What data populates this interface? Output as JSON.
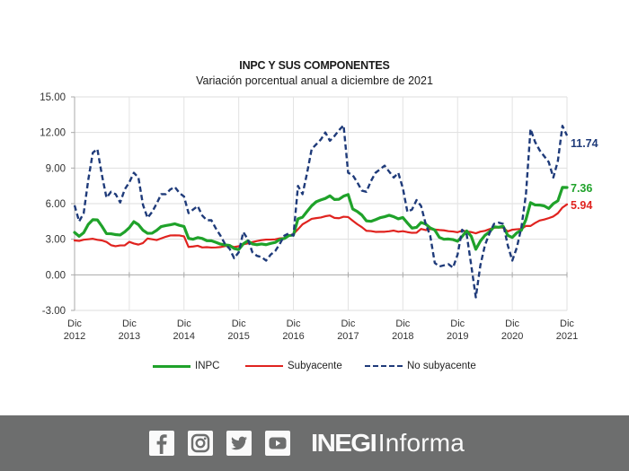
{
  "chart_data": {
    "type": "line",
    "title": "INPC Y SUS COMPONENTES",
    "subtitle": "Variación porcentual anual a diciembre de 2021",
    "xlabel": "",
    "ylabel": "",
    "ylim": [
      -3,
      15
    ],
    "yticks": [
      "15.00",
      "12.00",
      "9.00",
      "6.00",
      "3.00",
      "0.00",
      "-3.00"
    ],
    "ytick_values": [
      15,
      12,
      9,
      6,
      3,
      0,
      -3
    ],
    "xticks": [
      {
        "month": "Dic",
        "year": "2012"
      },
      {
        "month": "Dic",
        "year": "2013"
      },
      {
        "month": "Dic",
        "year": "2014"
      },
      {
        "month": "Dic",
        "year": "2015"
      },
      {
        "month": "Dic",
        "year": "2016"
      },
      {
        "month": "Dic",
        "year": "2017"
      },
      {
        "month": "Dic",
        "year": "2018"
      },
      {
        "month": "Dic",
        "year": "2019"
      },
      {
        "month": "Dic",
        "year": "2020"
      },
      {
        "month": "Dic",
        "year": "2021"
      }
    ],
    "x_start": "Dic 2012",
    "x_end": "Dic 2021",
    "frequency": "monthly",
    "grid": true,
    "legend_position": "bottom",
    "series": [
      {
        "name": "INPC",
        "color": "#1fa22a",
        "style": "solid",
        "end_label": "7.36",
        "values": [
          3.57,
          3.25,
          3.55,
          4.25,
          4.65,
          4.63,
          4.09,
          3.47,
          3.46,
          3.39,
          3.36,
          3.62,
          3.97,
          4.48,
          4.23,
          3.76,
          3.5,
          3.51,
          3.75,
          4.07,
          4.15,
          4.22,
          4.3,
          4.17,
          4.08,
          3.07,
          3.0,
          3.14,
          3.06,
          2.88,
          2.87,
          2.74,
          2.59,
          2.52,
          2.48,
          2.21,
          2.13,
          2.61,
          2.87,
          2.6,
          2.54,
          2.6,
          2.54,
          2.65,
          2.73,
          2.97,
          3.06,
          3.31,
          3.36,
          4.72,
          4.86,
          5.35,
          5.82,
          6.16,
          6.31,
          6.44,
          6.66,
          6.35,
          6.37,
          6.63,
          6.77,
          5.55,
          5.34,
          5.04,
          4.55,
          4.51,
          4.65,
          4.81,
          4.9,
          5.02,
          4.9,
          4.72,
          4.83,
          4.37,
          3.94,
          4.0,
          4.41,
          4.28,
          3.95,
          3.78,
          3.16,
          3.0,
          3.02,
          2.97,
          2.83,
          3.24,
          3.7,
          3.25,
          2.15,
          2.84,
          3.33,
          3.62,
          4.05,
          4.01,
          4.09,
          3.33,
          3.15,
          3.54,
          3.76,
          4.67,
          6.08,
          5.89,
          5.88,
          5.81,
          5.59,
          6.0,
          6.24,
          7.37,
          7.36
        ]
      },
      {
        "name": "Subyacente",
        "color": "#e0231f",
        "style": "solid",
        "end_label": "5.94",
        "values": [
          2.9,
          2.86,
          2.96,
          3.0,
          3.04,
          2.95,
          2.9,
          2.77,
          2.5,
          2.41,
          2.48,
          2.48,
          2.78,
          2.64,
          2.55,
          2.68,
          3.06,
          3.0,
          2.93,
          3.07,
          3.21,
          3.32,
          3.33,
          3.32,
          3.24,
          2.35,
          2.39,
          2.45,
          2.31,
          2.33,
          2.3,
          2.31,
          2.34,
          2.42,
          2.47,
          2.34,
          2.41,
          2.57,
          2.65,
          2.76,
          2.85,
          2.92,
          2.97,
          2.97,
          2.99,
          3.07,
          3.1,
          3.29,
          3.44,
          3.84,
          4.26,
          4.48,
          4.72,
          4.78,
          4.83,
          4.94,
          5.0,
          4.8,
          4.77,
          4.9,
          4.87,
          4.56,
          4.27,
          4.02,
          3.71,
          3.69,
          3.62,
          3.63,
          3.63,
          3.67,
          3.73,
          3.63,
          3.68,
          3.6,
          3.54,
          3.55,
          3.87,
          3.77,
          3.85,
          3.82,
          3.78,
          3.75,
          3.68,
          3.65,
          3.59,
          3.73,
          3.66,
          3.6,
          3.5,
          3.64,
          3.71,
          3.85,
          3.97,
          3.99,
          3.98,
          3.66,
          3.8,
          3.84,
          3.87,
          4.12,
          4.12,
          4.37,
          4.58,
          4.66,
          4.78,
          4.92,
          5.19,
          5.67,
          5.94
        ]
      },
      {
        "name": "No subyacente",
        "color": "#1f3b7a",
        "style": "dashed",
        "end_label": "11.74",
        "values": [
          5.85,
          4.5,
          5.2,
          8.0,
          10.3,
          10.6,
          8.4,
          6.5,
          7.0,
          6.8,
          6.1,
          7.2,
          7.8,
          8.6,
          8.2,
          5.9,
          4.8,
          5.3,
          6.0,
          6.8,
          6.8,
          7.2,
          7.4,
          6.9,
          6.6,
          5.2,
          5.5,
          5.8,
          5.0,
          4.6,
          4.6,
          3.9,
          3.3,
          2.6,
          2.2,
          1.4,
          1.9,
          3.6,
          3.0,
          1.9,
          1.6,
          1.5,
          1.2,
          1.7,
          2.0,
          2.6,
          3.3,
          3.5,
          3.3,
          7.5,
          6.8,
          8.6,
          10.6,
          11.0,
          11.4,
          12.0,
          11.3,
          11.7,
          12.2,
          12.6,
          8.6,
          8.4,
          7.8,
          7.1,
          7.0,
          7.9,
          8.6,
          8.9,
          9.2,
          8.7,
          8.2,
          8.6,
          7.3,
          5.3,
          5.5,
          6.3,
          5.8,
          4.3,
          3.3,
          1.0,
          0.7,
          0.8,
          0.9,
          0.6,
          1.7,
          3.8,
          3.4,
          0.8,
          -1.9,
          0.8,
          2.5,
          3.5,
          4.3,
          4.4,
          4.3,
          2.5,
          1.2,
          2.3,
          4.0,
          6.8,
          12.3,
          11.2,
          10.5,
          10.0,
          9.5,
          8.2,
          9.6,
          12.56,
          11.74
        ]
      }
    ]
  },
  "legend": {
    "items": [
      {
        "label": "INPC",
        "color": "#1fa22a",
        "style": "solid"
      },
      {
        "label": "Subyacente",
        "color": "#e0231f",
        "style": "solid"
      },
      {
        "label": "No subyacente",
        "color": "#1f3b7a",
        "style": "dashed"
      }
    ]
  },
  "footer": {
    "background": "#6d6e6e",
    "social_icons": [
      "facebook-icon",
      "instagram-icon",
      "twitter-icon",
      "youtube-icon"
    ],
    "brand_bold": "INEGI",
    "brand_light": "Informa"
  }
}
